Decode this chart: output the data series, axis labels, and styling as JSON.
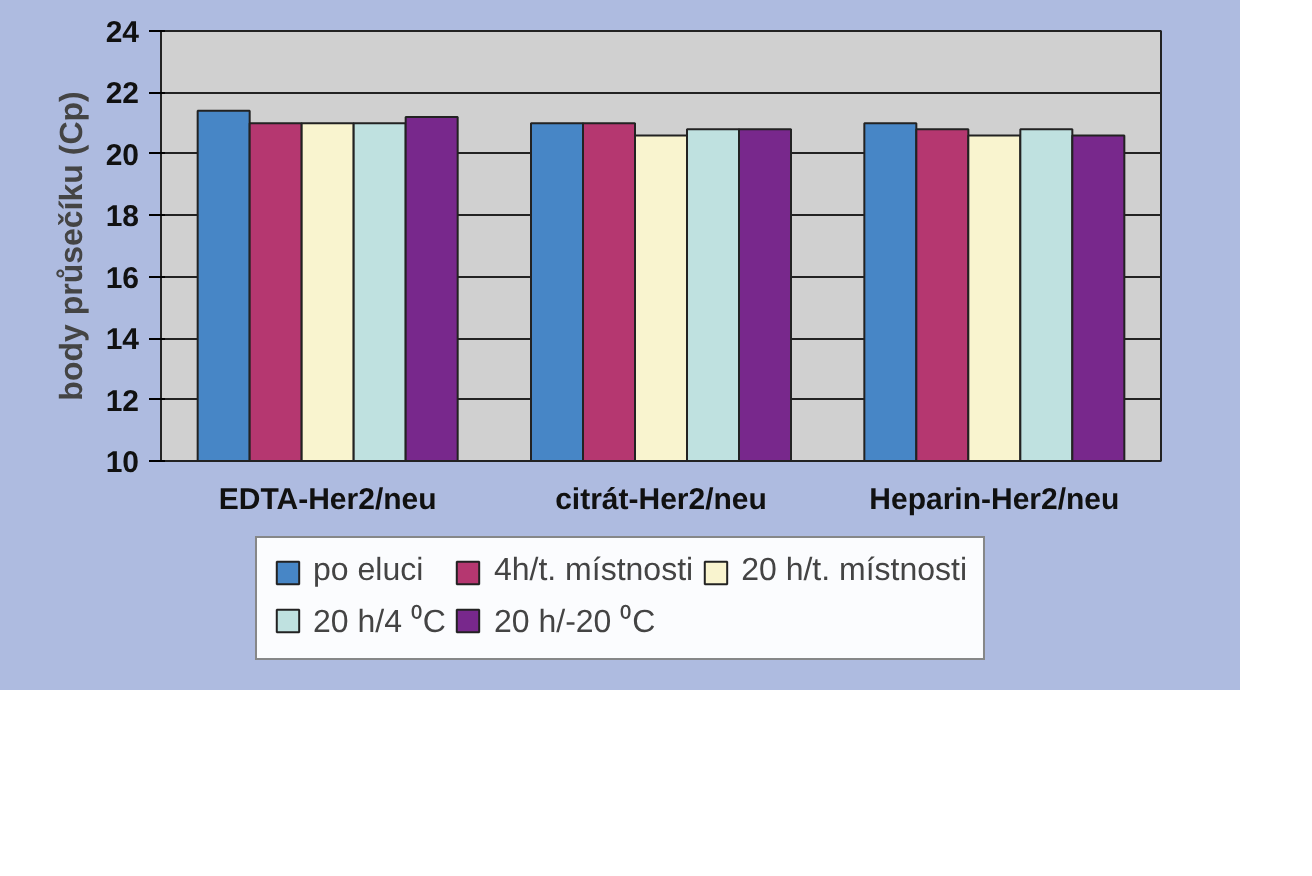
{
  "chart_data": {
    "type": "bar",
    "ylabel": "body průsečíku (Cp)",
    "categories": [
      "EDTA-Her2/neu",
      "citrát-Her2/neu",
      "Heparin-Her2/neu"
    ],
    "series": [
      {
        "name": "po eluci",
        "color": "#4786c6",
        "values": [
          21.4,
          21.0,
          21.0
        ]
      },
      {
        "name": "4h/t. místnosti",
        "color": "#b53770",
        "values": [
          21.0,
          21.0,
          20.8
        ]
      },
      {
        "name": "20 h/t. místnosti",
        "color": "#f9f4cf",
        "values": [
          21.0,
          20.6,
          20.6
        ]
      },
      {
        "name": "20 h/4 ⁰C",
        "color": "#bfe1e0",
        "values": [
          21.0,
          20.8,
          20.8
        ]
      },
      {
        "name": "20 h/-20 ⁰C",
        "color": "#78288c",
        "values": [
          21.2,
          20.8,
          20.6
        ]
      }
    ],
    "ylim": [
      10,
      24
    ],
    "yticks": [
      10,
      12,
      14,
      16,
      18,
      20,
      22,
      24
    ],
    "grid": "y",
    "legend": "bottom"
  }
}
